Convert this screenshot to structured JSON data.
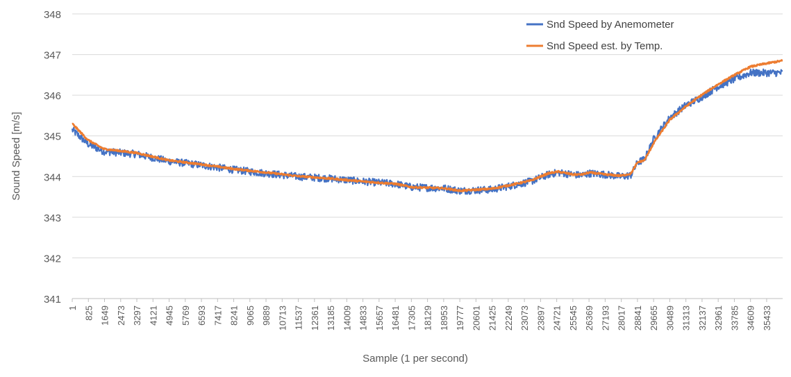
{
  "chart_data": {
    "type": "line",
    "title": "",
    "xlabel": "Sample (1 per second)",
    "ylabel": "Sound Speed [m/s]",
    "ylim": [
      341,
      348
    ],
    "yticks": [
      341,
      342,
      343,
      344,
      345,
      346,
      347,
      348
    ],
    "xlim": [
      1,
      36250
    ],
    "xtick_labels": [
      1,
      825,
      1649,
      2473,
      3297,
      4121,
      4945,
      5769,
      6593,
      7417,
      8241,
      9065,
      9889,
      10713,
      11537,
      12361,
      13185,
      14009,
      14833,
      15657,
      16481,
      17305,
      18129,
      18953,
      19777,
      20601,
      21425,
      22249,
      23073,
      23897,
      24721,
      25545,
      26369,
      27193,
      28017,
      28841,
      29665,
      30489,
      31313,
      32137,
      32961,
      33785,
      34609,
      35433
    ],
    "grid": "horizontal",
    "legend_position": "top-right",
    "series": [
      {
        "name": "Snd Speed by Anemometer",
        "color": "#4472C4",
        "noise": 0.09,
        "points": [
          [
            1,
            345.15
          ],
          [
            800,
            344.8
          ],
          [
            1600,
            344.62
          ],
          [
            3300,
            344.55
          ],
          [
            4900,
            344.38
          ],
          [
            6600,
            344.28
          ],
          [
            8200,
            344.17
          ],
          [
            9900,
            344.08
          ],
          [
            11500,
            344.0
          ],
          [
            13200,
            343.95
          ],
          [
            14800,
            343.88
          ],
          [
            16500,
            343.82
          ],
          [
            17300,
            343.74
          ],
          [
            19000,
            343.71
          ],
          [
            19800,
            343.65
          ],
          [
            21400,
            343.68
          ],
          [
            22250,
            343.76
          ],
          [
            23400,
            343.88
          ],
          [
            24300,
            344.05
          ],
          [
            24800,
            344.1
          ],
          [
            25550,
            344.05
          ],
          [
            26000,
            344.03
          ],
          [
            26400,
            344.08
          ],
          [
            27200,
            344.05
          ],
          [
            28000,
            344.0
          ],
          [
            28500,
            344.03
          ],
          [
            28850,
            344.35
          ],
          [
            29200,
            344.42
          ],
          [
            29700,
            344.95
          ],
          [
            30500,
            345.45
          ],
          [
            31300,
            345.75
          ],
          [
            32100,
            345.95
          ],
          [
            32900,
            346.2
          ],
          [
            33800,
            346.4
          ],
          [
            34600,
            346.55
          ],
          [
            35400,
            346.55
          ],
          [
            36250,
            346.55
          ]
        ]
      },
      {
        "name": "Snd Speed est. by Temp.",
        "color": "#ED7D31",
        "noise": 0.02,
        "points": [
          [
            1,
            345.3
          ],
          [
            800,
            344.9
          ],
          [
            1600,
            344.68
          ],
          [
            3300,
            344.58
          ],
          [
            4900,
            344.4
          ],
          [
            6600,
            344.3
          ],
          [
            8200,
            344.19
          ],
          [
            9900,
            344.1
          ],
          [
            11500,
            344.01
          ],
          [
            13200,
            343.95
          ],
          [
            14800,
            343.88
          ],
          [
            16500,
            343.82
          ],
          [
            17300,
            343.74
          ],
          [
            19000,
            343.71
          ],
          [
            19800,
            343.65
          ],
          [
            21400,
            343.7
          ],
          [
            22250,
            343.78
          ],
          [
            23400,
            343.9
          ],
          [
            24300,
            344.08
          ],
          [
            24800,
            344.12
          ],
          [
            25550,
            344.05
          ],
          [
            26000,
            344.05
          ],
          [
            26400,
            344.1
          ],
          [
            27200,
            344.05
          ],
          [
            28000,
            344.02
          ],
          [
            28500,
            344.07
          ],
          [
            28850,
            344.35
          ],
          [
            29200,
            344.4
          ],
          [
            29700,
            344.85
          ],
          [
            30500,
            345.4
          ],
          [
            31300,
            345.72
          ],
          [
            32100,
            346.0
          ],
          [
            32900,
            346.25
          ],
          [
            33800,
            346.5
          ],
          [
            34600,
            346.7
          ],
          [
            35400,
            346.78
          ],
          [
            36250,
            346.85
          ]
        ]
      }
    ]
  }
}
